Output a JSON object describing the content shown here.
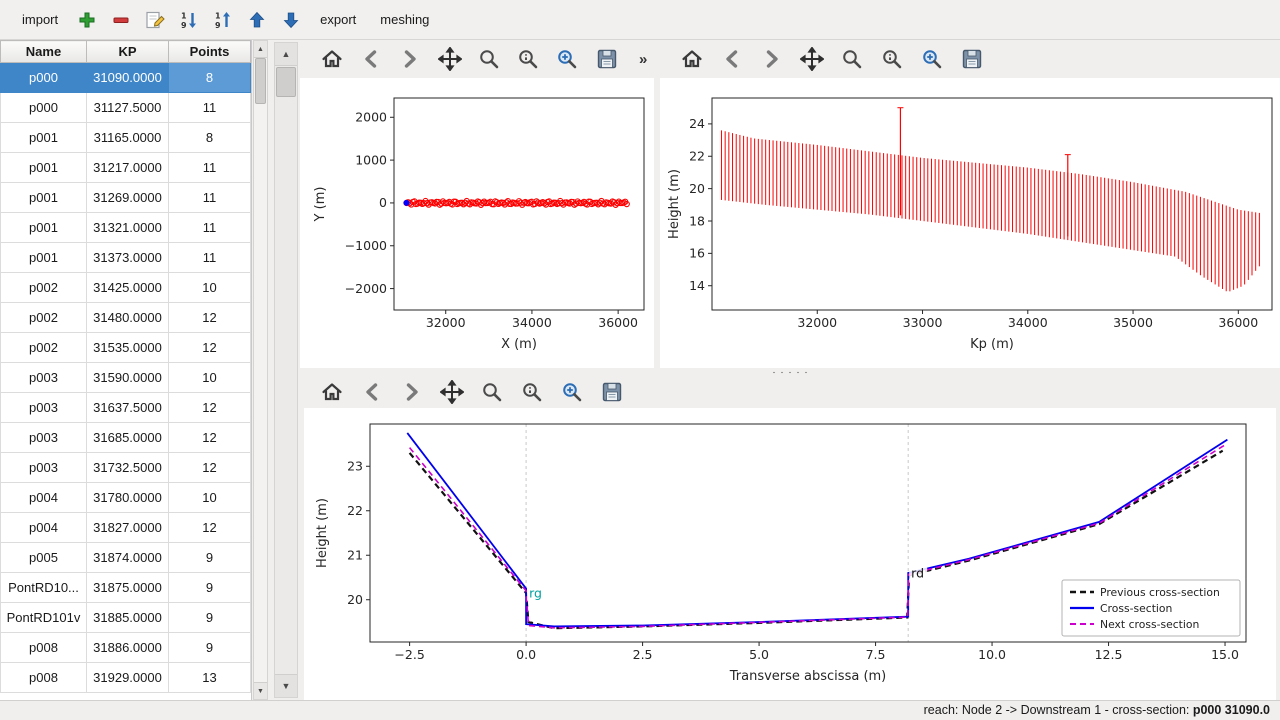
{
  "toolbar": {
    "import_label": "import",
    "export_label": "export",
    "meshing_label": "meshing"
  },
  "icons": {
    "add_icon": "green-plus",
    "remove_icon": "red-minus",
    "edit_icon": "pencil-on-page",
    "sort_descending_icon": "arrow-down-1-9",
    "sort_ascending_icon": "arrow-up-1-9",
    "move_up_icon": "blue-arrow-up",
    "move_down_icon": "blue-arrow-down",
    "mpl_toolbar_icons": [
      "home",
      "back",
      "forward",
      "pan",
      "zoom",
      "subplots",
      "customize",
      "save"
    ],
    "scroll_up_glyph": "▲",
    "scroll_down_glyph": "▼",
    "overflow_glyph": "»"
  },
  "table": {
    "columns": [
      "Name",
      "KP",
      "Points"
    ],
    "rows": [
      {
        "name": "p000",
        "kp": "31090.0000",
        "points": "8",
        "selected": true
      },
      {
        "name": "p000",
        "kp": "31127.5000",
        "points": "11"
      },
      {
        "name": "p001",
        "kp": "31165.0000",
        "points": "8"
      },
      {
        "name": "p001",
        "kp": "31217.0000",
        "points": "11"
      },
      {
        "name": "p001",
        "kp": "31269.0000",
        "points": "11"
      },
      {
        "name": "p001",
        "kp": "31321.0000",
        "points": "11"
      },
      {
        "name": "p001",
        "kp": "31373.0000",
        "points": "11"
      },
      {
        "name": "p002",
        "kp": "31425.0000",
        "points": "10"
      },
      {
        "name": "p002",
        "kp": "31480.0000",
        "points": "12"
      },
      {
        "name": "p002",
        "kp": "31535.0000",
        "points": "12"
      },
      {
        "name": "p003",
        "kp": "31590.0000",
        "points": "10"
      },
      {
        "name": "p003",
        "kp": "31637.5000",
        "points": "12"
      },
      {
        "name": "p003",
        "kp": "31685.0000",
        "points": "12"
      },
      {
        "name": "p003",
        "kp": "31732.5000",
        "points": "12"
      },
      {
        "name": "p004",
        "kp": "31780.0000",
        "points": "10"
      },
      {
        "name": "p004",
        "kp": "31827.0000",
        "points": "12"
      },
      {
        "name": "p005",
        "kp": "31874.0000",
        "points": "9"
      },
      {
        "name": "PontRD10...",
        "kp": "31875.0000",
        "points": "9"
      },
      {
        "name": "PontRD101v",
        "kp": "31885.0000",
        "points": "9"
      },
      {
        "name": "p008",
        "kp": "31886.0000",
        "points": "9"
      },
      {
        "name": "p008",
        "kp": "31929.0000",
        "points": "13"
      }
    ]
  },
  "status_bar": {
    "prefix": "reach: Node 2 -> Downstream 1 - cross-section: ",
    "highlight": "p000 31090.0"
  },
  "colors": {
    "selection_bg": "#3f86c9",
    "selection_cell_bg": "#5c9bd6",
    "scatter_red": "#ff0000",
    "profile_red": "#ff0000",
    "cross_section_blue": "#0000ee",
    "previous_black": "#111111",
    "next_magenta": "#cc00cc",
    "rg_label_teal": "#00a0a0"
  },
  "chart_data": [
    {
      "id": "plan_view",
      "type": "scatter",
      "xlabel": "X (m)",
      "ylabel": "Y (m)",
      "xlim": [
        30800,
        36600
      ],
      "ylim": [
        -2500,
        2450
      ],
      "xticks": [
        32000,
        34000,
        36000
      ],
      "yticks": [
        -2000,
        -1000,
        0,
        1000,
        2000
      ],
      "series": [
        {
          "name": "cross-section positions",
          "marker": "circle_open",
          "color": "#ff0000",
          "x_start": 31090,
          "x_end": 36200,
          "count": 140,
          "y": 0
        }
      ],
      "highlight_point": {
        "x": 31090,
        "y": 0,
        "color": "#0000ff"
      }
    },
    {
      "id": "longitudinal_profile",
      "type": "vlines",
      "xlabel": "Kp (m)",
      "ylabel": "Height (m)",
      "xlim": [
        31000,
        36320
      ],
      "ylim": [
        12.5,
        25.6
      ],
      "xticks": [
        32000,
        33000,
        34000,
        35000,
        36000
      ],
      "yticks": [
        14,
        16,
        18,
        20,
        22,
        24
      ],
      "color": "#ff0000",
      "bar_spacing": 35,
      "envelope_top": [
        [
          31090,
          23.6
        ],
        [
          31400,
          23.1
        ],
        [
          32000,
          22.7
        ],
        [
          32500,
          22.3
        ],
        [
          33000,
          21.9
        ],
        [
          33500,
          21.6
        ],
        [
          34000,
          21.3
        ],
        [
          34500,
          20.9
        ],
        [
          35000,
          20.4
        ],
        [
          35500,
          19.8
        ],
        [
          36000,
          18.7
        ],
        [
          36200,
          18.5
        ]
      ],
      "envelope_bottom": [
        [
          31090,
          19.3
        ],
        [
          31500,
          19.0
        ],
        [
          32000,
          18.7
        ],
        [
          32500,
          18.4
        ],
        [
          33000,
          18.0
        ],
        [
          33500,
          17.6
        ],
        [
          34000,
          17.2
        ],
        [
          34500,
          16.7
        ],
        [
          35000,
          16.2
        ],
        [
          35400,
          15.8
        ],
        [
          35650,
          14.6
        ],
        [
          35900,
          13.6
        ],
        [
          36050,
          14.0
        ],
        [
          36200,
          15.2
        ]
      ],
      "spike_bars": [
        {
          "kp": 32790,
          "bottom": 18.35,
          "top": 25.0
        },
        {
          "kp": 34380,
          "bottom": 17.05,
          "top": 22.1
        }
      ]
    },
    {
      "id": "cross_section",
      "type": "line",
      "xlabel": "Transverse abscissa (m)",
      "ylabel": "Height (m)",
      "xlim": [
        -3.35,
        15.45
      ],
      "ylim": [
        19.05,
        23.95
      ],
      "xticks": [
        -2.5,
        0.0,
        2.5,
        5.0,
        7.5,
        10.0,
        12.5,
        15.0
      ],
      "xtick_decimals": 1,
      "yticks": [
        20,
        21,
        22,
        23
      ],
      "series": [
        {
          "name": "Previous cross-section",
          "color": "#111111",
          "dash": "6 4",
          "width": 2.2,
          "points": [
            [
              -2.5,
              23.3
            ],
            [
              0.0,
              20.15
            ],
            [
              0.05,
              19.5
            ],
            [
              0.6,
              19.36
            ],
            [
              2.5,
              19.4
            ],
            [
              5.0,
              19.48
            ],
            [
              8.18,
              19.6
            ],
            [
              8.22,
              20.55
            ],
            [
              9.5,
              20.88
            ],
            [
              12.3,
              21.7
            ],
            [
              14.95,
              23.35
            ]
          ]
        },
        {
          "name": "Cross-section",
          "color": "#0000ee",
          "dash": null,
          "width": 1.8,
          "points": [
            [
              -2.55,
              23.75
            ],
            [
              0.0,
              20.25
            ],
            [
              0.0,
              19.45
            ],
            [
              0.6,
              19.4
            ],
            [
              2.5,
              19.42
            ],
            [
              5.0,
              19.5
            ],
            [
              8.2,
              19.62
            ],
            [
              8.2,
              20.6
            ],
            [
              9.5,
              20.92
            ],
            [
              12.3,
              21.75
            ],
            [
              15.05,
              23.6
            ]
          ]
        },
        {
          "name": "Next cross-section",
          "color": "#cc00cc",
          "dash": "6 4",
          "width": 1.6,
          "points": [
            [
              -2.5,
              23.42
            ],
            [
              0.0,
              20.2
            ],
            [
              0.05,
              19.42
            ],
            [
              0.6,
              19.37
            ],
            [
              2.5,
              19.4
            ],
            [
              5.0,
              19.49
            ],
            [
              8.19,
              19.61
            ],
            [
              8.21,
              20.57
            ],
            [
              9.5,
              20.9
            ],
            [
              12.3,
              21.72
            ],
            [
              15.0,
              23.48
            ]
          ]
        }
      ],
      "bank_markers": [
        {
          "x": 0.0,
          "label": "rg",
          "label_color": "#00a0a0",
          "label_y": 20.05
        },
        {
          "x": 8.2,
          "label": "rd",
          "label_color": "#111111",
          "label_y": 20.5
        }
      ],
      "legend": {
        "position": "lower right",
        "entries": [
          "Previous cross-section",
          "Cross-section",
          "Next cross-section"
        ]
      }
    }
  ]
}
